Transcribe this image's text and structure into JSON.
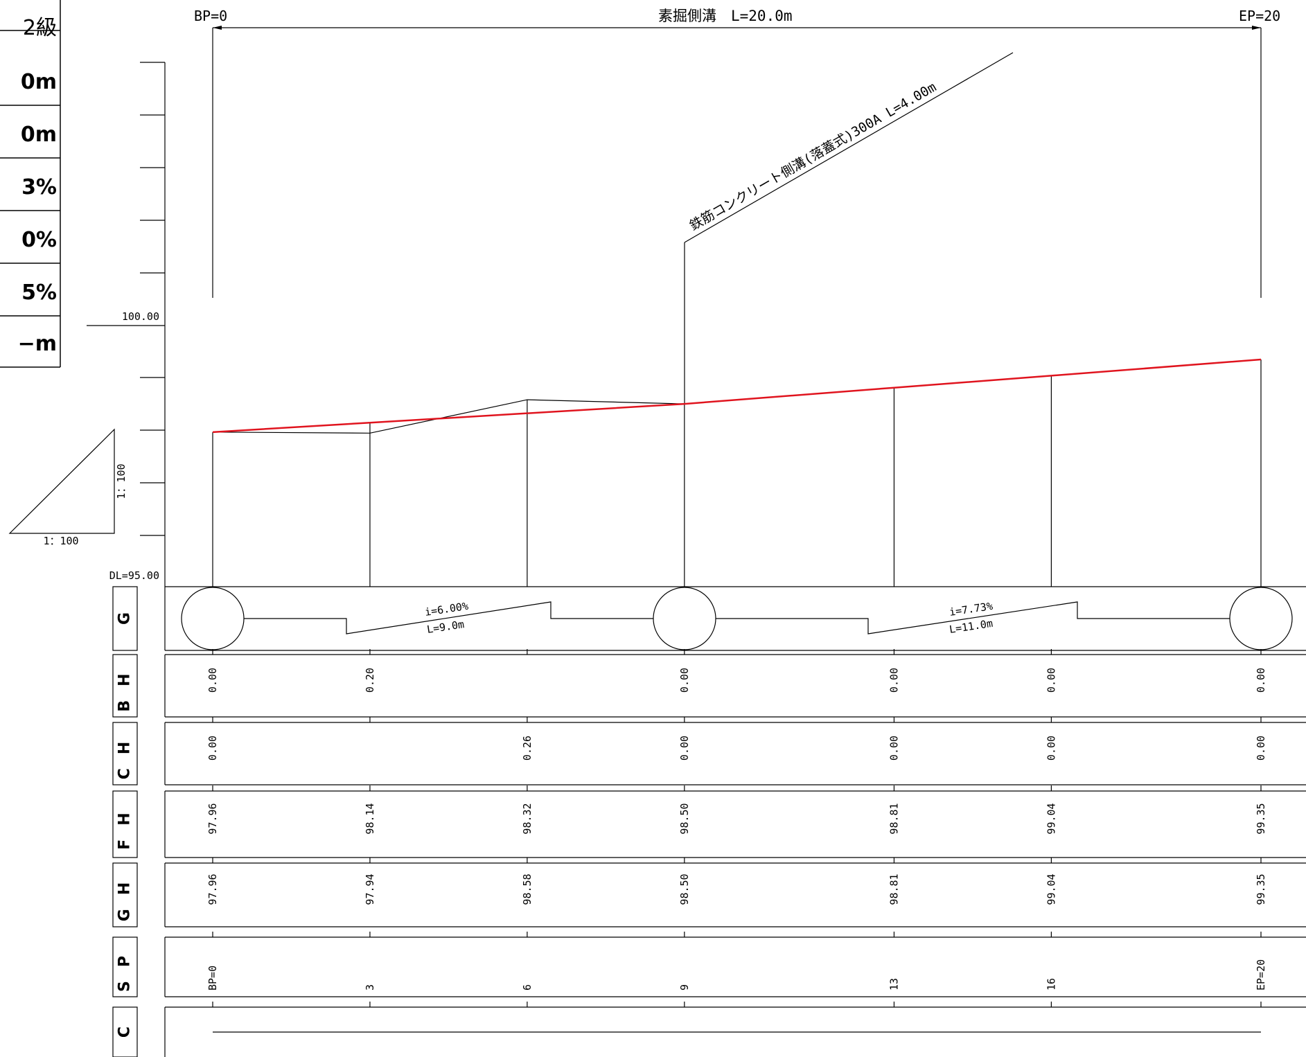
{
  "spec_table": {
    "rows": [
      "2級",
      "0m",
      "0m",
      "3%",
      "0%",
      "5%",
      "−m"
    ]
  },
  "header": {
    "start_label": "BP=0",
    "end_label": "EP=20",
    "title": "素掘側溝　L=20.0m"
  },
  "annotation": {
    "structure_label": "鉄筋コンクリート側溝(落蓋式)300A L=4.00m"
  },
  "scale_triangle": {
    "horizontal_label": "1：100",
    "vertical_label": "1：100"
  },
  "elevation_axis": {
    "top_label": "100.00",
    "datum_label": "DL=95.00"
  },
  "gradient_segments": [
    {
      "slope": "i=6.00%",
      "length": "L=9.0m"
    },
    {
      "slope": "i=7.73%",
      "length": "L=11.0m"
    }
  ],
  "rows": {
    "G": {
      "label": "G"
    },
    "BH": {
      "label": "BH",
      "values": [
        "0.00",
        "0.20",
        "",
        "0.00",
        "0.00",
        "0.00",
        "0.00"
      ]
    },
    "CH": {
      "label": "CH",
      "values": [
        "0.00",
        "",
        "0.26",
        "0.00",
        "0.00",
        "0.00",
        "0.00"
      ]
    },
    "FH": {
      "label": "FH",
      "values": [
        "97.96",
        "98.14",
        "98.32",
        "98.50",
        "98.81",
        "99.04",
        "99.35"
      ]
    },
    "GH": {
      "label": "GH",
      "values": [
        "97.96",
        "97.94",
        "98.58",
        "98.50",
        "98.81",
        "99.04",
        "99.35"
      ]
    },
    "SP": {
      "label": "SP",
      "values": [
        "BP=0",
        "3",
        "6",
        "9",
        "13",
        "16",
        "EP=20"
      ]
    },
    "C": {
      "label": "C"
    }
  },
  "chart_data": {
    "type": "line",
    "x": [
      0,
      3,
      6,
      9,
      13,
      16,
      20
    ],
    "series": [
      {
        "values": [
          97.96,
          98.14,
          98.32,
          98.5,
          98.81,
          99.04,
          99.35
        ],
        "color": "#e0141e"
      },
      {
        "values": [
          97.96,
          97.94,
          98.58,
          98.5,
          98.81,
          99.04,
          99.35
        ],
        "color": "#000000"
      }
    ],
    "ylim": [
      95.0,
      100.0
    ],
    "xlim": [
      0,
      20
    ]
  },
  "colors": {
    "design_line": "#e0141e",
    "ink": "#000000"
  }
}
